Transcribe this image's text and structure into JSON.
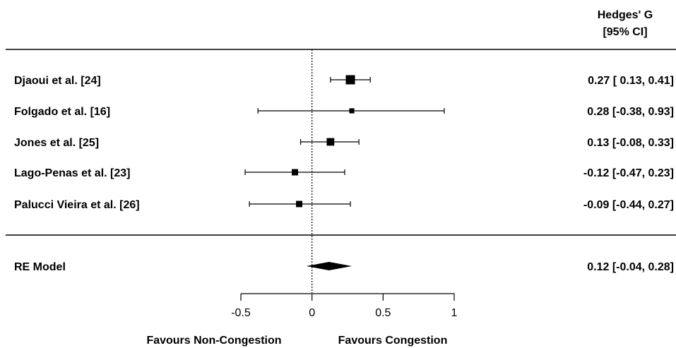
{
  "chart_data": {
    "type": "forest",
    "column_header": [
      "Hedges' G",
      "[95% CI]"
    ],
    "studies": [
      {
        "label": "Djaoui et al. [24]",
        "estimate": 0.27,
        "lower": 0.13,
        "upper": 0.41,
        "ci_text": "0.27 [ 0.13, 0.41]",
        "weight_rel": 1.0
      },
      {
        "label": "Folgado et al. [16]",
        "estimate": 0.28,
        "lower": -0.38,
        "upper": 0.93,
        "ci_text": "0.28 [-0.38, 0.93]",
        "weight_rel": 0.35
      },
      {
        "label": "Jones et al. [25]",
        "estimate": 0.13,
        "lower": -0.08,
        "upper": 0.33,
        "ci_text": "0.13 [-0.08, 0.33]",
        "weight_rel": 0.75
      },
      {
        "label": "Lago-Penas et al. [23]",
        "estimate": -0.12,
        "lower": -0.47,
        "upper": 0.23,
        "ci_text": "-0.12 [-0.47, 0.23]",
        "weight_rel": 0.55
      },
      {
        "label": "Palucci Vieira et al. [26]",
        "estimate": -0.09,
        "lower": -0.44,
        "upper": 0.27,
        "ci_text": "-0.09 [-0.44, 0.27]",
        "weight_rel": 0.55
      }
    ],
    "summary": {
      "label": "RE Model",
      "estimate": 0.12,
      "lower": -0.04,
      "upper": 0.28,
      "ci_text": "0.12 [-0.04, 0.28]"
    },
    "x_ticks": [
      -0.5,
      0,
      0.5,
      1
    ],
    "x_tick_labels": [
      "-0.5",
      "0",
      "0.5",
      "1"
    ],
    "xlim": [
      -0.5,
      1
    ],
    "reference_line": 0,
    "left_annotation": "Favours Non-Congestion",
    "right_annotation": "Favours Congestion"
  }
}
